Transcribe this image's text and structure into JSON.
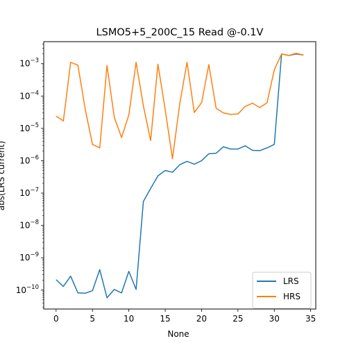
{
  "chart_data": {
    "type": "line",
    "title": "LSMO5+5_200C_15 Read @-0.1V",
    "xlabel": "None",
    "ylabel": "abs(LRS current)",
    "yscale": "log",
    "xlim": [
      -1.7,
      35.7
    ],
    "ylim": [
      2.6e-11,
      0.0048
    ],
    "xticks": [
      0,
      5,
      10,
      15,
      20,
      25,
      30,
      35
    ],
    "yticks": [
      {
        "value": 1e-10,
        "base": "10",
        "exp": "−10"
      },
      {
        "value": 1e-09,
        "base": "10",
        "exp": "−9"
      },
      {
        "value": 1e-08,
        "base": "10",
        "exp": "−8"
      },
      {
        "value": 1e-07,
        "base": "10",
        "exp": "−7"
      },
      {
        "value": 1e-06,
        "base": "10",
        "exp": "−6"
      },
      {
        "value": 1e-05,
        "base": "10",
        "exp": "−5"
      },
      {
        "value": 0.0001,
        "base": "10",
        "exp": "−4"
      },
      {
        "value": 0.001,
        "base": "10",
        "exp": "−3"
      }
    ],
    "grid": false,
    "legend_position": "lower right",
    "x": [
      0,
      1,
      2,
      3,
      4,
      5,
      6,
      7,
      8,
      9,
      10,
      11,
      12,
      13,
      14,
      15,
      16,
      17,
      18,
      19,
      20,
      21,
      22,
      23,
      24,
      25,
      26,
      27,
      28,
      29,
      30,
      31,
      32,
      33,
      34
    ],
    "series": [
      {
        "name": "LRS",
        "color": "#1f77b4",
        "values": [
          2.1e-10,
          1.3e-10,
          2.7e-10,
          8.2e-11,
          8e-11,
          9.6e-11,
          4.3e-10,
          5.8e-11,
          1.05e-10,
          8.2e-11,
          3.8e-10,
          1.05e-10,
          5.5e-08,
          1.4e-07,
          3.4e-07,
          5e-07,
          4.4e-07,
          7.5e-07,
          9.6e-07,
          7.8e-07,
          1e-06,
          1.65e-06,
          1.7e-06,
          2.7e-06,
          2.3e-06,
          2.3e-06,
          2.9e-06,
          2.1e-06,
          2.05e-06,
          2.5e-06,
          3.2e-06,
          0.002,
          0.0018,
          0.002,
          0.00185
        ]
      },
      {
        "name": "HRS",
        "color": "#ff7f0e",
        "values": [
          2.4e-05,
          1.7e-05,
          0.0011,
          0.0009,
          4e-05,
          3.2e-06,
          2.5e-06,
          0.00088,
          2.2e-05,
          5.2e-06,
          2.6e-05,
          0.0011,
          5e-05,
          4.2e-06,
          0.00096,
          3.8e-05,
          1.15e-06,
          5.8e-05,
          0.0011,
          3.1e-05,
          6.2e-05,
          0.00094,
          4.2e-05,
          3e-05,
          2.7e-05,
          2.8e-05,
          4.8e-05,
          6e-05,
          4.4e-05,
          6.2e-05,
          0.00065,
          0.002,
          0.0018,
          0.0021,
          0.00185
        ]
      }
    ]
  }
}
